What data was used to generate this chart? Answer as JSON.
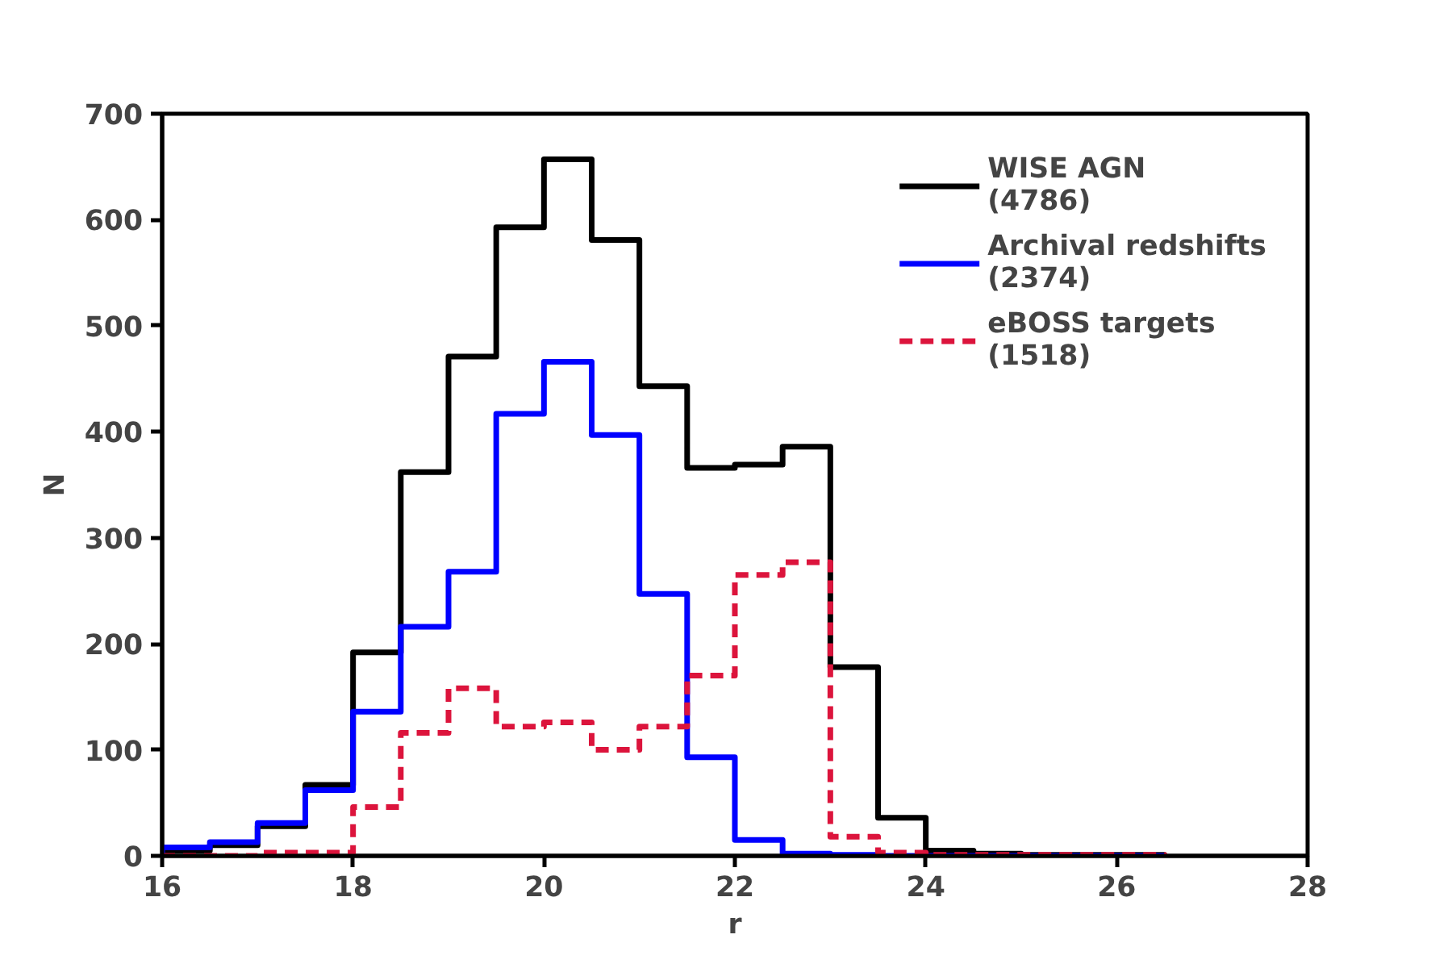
{
  "chart_data": {
    "type": "histogram",
    "xlabel": "r",
    "ylabel": "N",
    "bins": [
      16,
      16.5,
      17,
      17.5,
      18,
      18.5,
      19,
      19.5,
      20,
      20.5,
      21,
      21.5,
      22,
      22.5,
      23,
      23.5,
      24,
      24.5,
      25,
      25.5,
      26,
      26.5
    ],
    "series": [
      {
        "name": "WISE AGN\n(4786)",
        "color": "#000000",
        "values": [
          5,
          10,
          28,
          67,
          192,
          362,
          471,
          593,
          657,
          581,
          443,
          366,
          369,
          386,
          178,
          36,
          5,
          2,
          1,
          1,
          1
        ]
      },
      {
        "name": "Archival redshifts\n(2374)",
        "color": "#0000ff",
        "values": [
          8,
          13,
          31,
          62,
          136,
          216,
          268,
          417,
          466,
          397,
          247,
          93,
          15,
          2,
          1,
          0,
          0,
          0,
          0,
          0,
          0
        ]
      },
      {
        "name": "eBOSS targets\n(1518)",
        "color": "#dc143c",
        "line_style": "dashed",
        "values": [
          0,
          0,
          3,
          3,
          46,
          116,
          158,
          122,
          126,
          100,
          122,
          170,
          265,
          277,
          18,
          3,
          1,
          1,
          1,
          1,
          1
        ]
      }
    ],
    "xlim": [
      16,
      28
    ],
    "ylim": [
      0,
      700
    ],
    "xticks": [
      16,
      18,
      20,
      22,
      24,
      26,
      28
    ],
    "yticks": [
      0,
      100,
      200,
      300,
      400,
      500,
      600,
      700
    ],
    "grid": false,
    "legend": "top right"
  }
}
